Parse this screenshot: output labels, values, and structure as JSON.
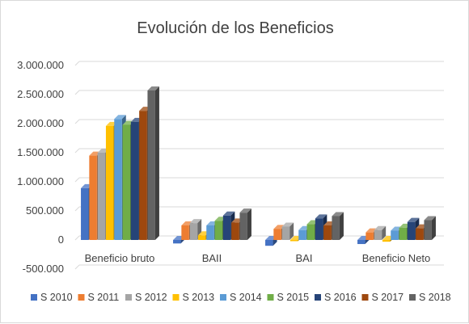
{
  "chart_data": {
    "type": "bar",
    "title": "Evolución de los Beneficios",
    "xlabel": "",
    "ylabel": "",
    "ylim": [
      -500000,
      3000000
    ],
    "yticks": [
      -500000,
      0,
      500000,
      1000000,
      1500000,
      2000000,
      2500000,
      3000000
    ],
    "ytick_labels": [
      "-500.000",
      "0",
      "500.000",
      "1.000.000",
      "1.500.000",
      "2.000.000",
      "2.500.000",
      "3.000.000"
    ],
    "grid": true,
    "style": "3d-clustered-column",
    "legend_position": "bottom",
    "categories": [
      "Beneficio bruto",
      "BAII",
      "BAI",
      "Beneficio Neto"
    ],
    "series": [
      {
        "name": "S 2010",
        "color": "#4472C4",
        "values": [
          890000,
          -60000,
          -100000,
          -70000
        ]
      },
      {
        "name": "S 2011",
        "color": "#ED7D31",
        "values": [
          1450000,
          250000,
          190000,
          130000
        ]
      },
      {
        "name": "S 2012",
        "color": "#A5A5A5",
        "values": [
          1500000,
          290000,
          230000,
          170000
        ]
      },
      {
        "name": "S 2013",
        "color": "#FFC000",
        "values": [
          1960000,
          80000,
          -10000,
          -30000
        ]
      },
      {
        "name": "S 2014",
        "color": "#5B9BD5",
        "values": [
          2080000,
          250000,
          170000,
          160000
        ]
      },
      {
        "name": "S 2015",
        "color": "#70AD47",
        "values": [
          1980000,
          330000,
          270000,
          210000
        ]
      },
      {
        "name": "S 2016",
        "color": "#264478",
        "values": [
          2030000,
          420000,
          370000,
          310000
        ]
      },
      {
        "name": "S 2017",
        "color": "#9E480E",
        "values": [
          2220000,
          300000,
          250000,
          200000
        ]
      },
      {
        "name": "S 2018",
        "color": "#636363",
        "values": [
          2570000,
          470000,
          410000,
          340000
        ]
      }
    ]
  }
}
